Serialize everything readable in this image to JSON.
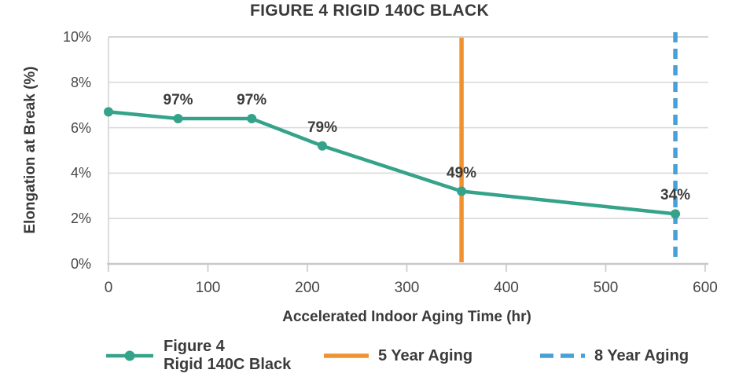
{
  "chart_data": {
    "type": "line",
    "title": "FIGURE 4 RIGID 140C BLACK",
    "xlabel": "Accelerated Indoor Aging Time (hr)",
    "ylabel": "Elongation at Break (%)",
    "xlim": [
      0,
      600
    ],
    "ylim": [
      0,
      10
    ],
    "x_ticks": [
      0,
      100,
      200,
      300,
      400,
      500,
      600
    ],
    "y_ticks": [
      {
        "value": 0,
        "label": "0%"
      },
      {
        "value": 2,
        "label": "2%"
      },
      {
        "value": 4,
        "label": "4%"
      },
      {
        "value": 6,
        "label": "6%"
      },
      {
        "value": 8,
        "label": "8%"
      },
      {
        "value": 10,
        "label": "10%"
      }
    ],
    "grid": "horizontal-only",
    "legend_position": "bottom",
    "series": [
      {
        "name": "Figure 4 Rigid 140C Black",
        "color": "#35A38A",
        "marker": "circle",
        "x": [
          0,
          70,
          144,
          215,
          355,
          570
        ],
        "y": [
          6.7,
          6.4,
          6.4,
          5.2,
          3.2,
          2.2
        ],
        "point_labels": [
          "",
          "97%",
          "97%",
          "79%",
          "49%",
          "34%"
        ]
      }
    ],
    "vlines": [
      {
        "name": "5 Year Aging",
        "x": 355,
        "color": "#F0922F",
        "style": "solid"
      },
      {
        "name": "8 Year Aging",
        "x": 570,
        "color": "#47A0D7",
        "style": "dashed"
      }
    ]
  },
  "legend": {
    "series": {
      "line1": "Figure 4",
      "line2": "Rigid 140C Black"
    },
    "vline1": {
      "label": "5 Year Aging"
    },
    "vline2": {
      "label": "8 Year Aging"
    }
  }
}
